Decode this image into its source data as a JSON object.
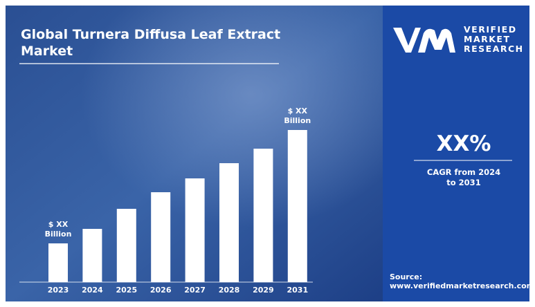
{
  "chart_data": {
    "type": "bar",
    "title": "Global Turnera Diffusa Leaf Extract Market",
    "categories": [
      "2023",
      "2024",
      "2025",
      "2026",
      "2027",
      "2028",
      "2029",
      "2031"
    ],
    "values": [
      56,
      77,
      106,
      130,
      150,
      172,
      193,
      220
    ],
    "value_labels": [
      "$ XX Billion",
      null,
      null,
      null,
      null,
      null,
      null,
      "$ XX Billion"
    ],
    "color": "#ffffff",
    "ylim": [
      0,
      240
    ]
  },
  "sidebar": {
    "brand": [
      "VERIFIED",
      "MARKET",
      "RESEARCH"
    ],
    "cagr_value": "XX%",
    "cagr_label": "CAGR from 2024 to 2031",
    "source_label": "Source:",
    "source_url": "www.verifiedmarketresearch.com"
  }
}
